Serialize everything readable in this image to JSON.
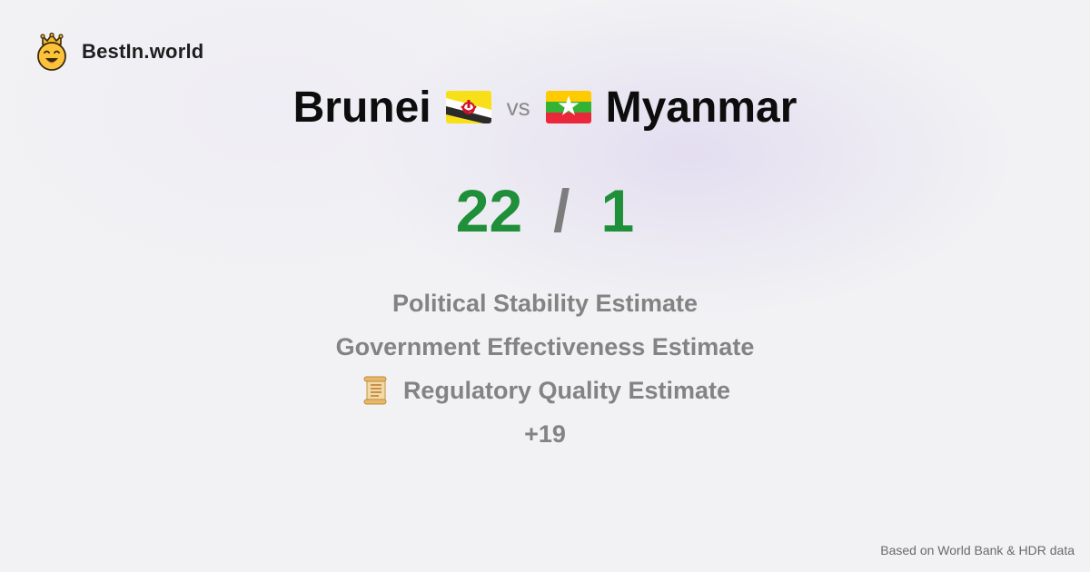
{
  "brand": {
    "name": "BestIn.world",
    "icon": "crowned-smiley-icon"
  },
  "comparison": {
    "left_country": "Brunei",
    "left_flag": "brunei-flag-icon",
    "vs_label": "vs",
    "right_country": "Myanmar",
    "right_flag": "myanmar-flag-icon"
  },
  "score": {
    "left": "22",
    "separator": "/",
    "right": "1"
  },
  "metrics": [
    {
      "label": "Political Stability Estimate",
      "icon": ""
    },
    {
      "label": "Government Effectiveness Estimate",
      "icon": ""
    },
    {
      "label": "Regulatory Quality Estimate",
      "icon": "scroll-icon"
    }
  ],
  "more_count": "+19",
  "source_note": "Based on World Bank & HDR data",
  "colors": {
    "score_green": "#1f8f3a",
    "muted_text": "#838383"
  }
}
